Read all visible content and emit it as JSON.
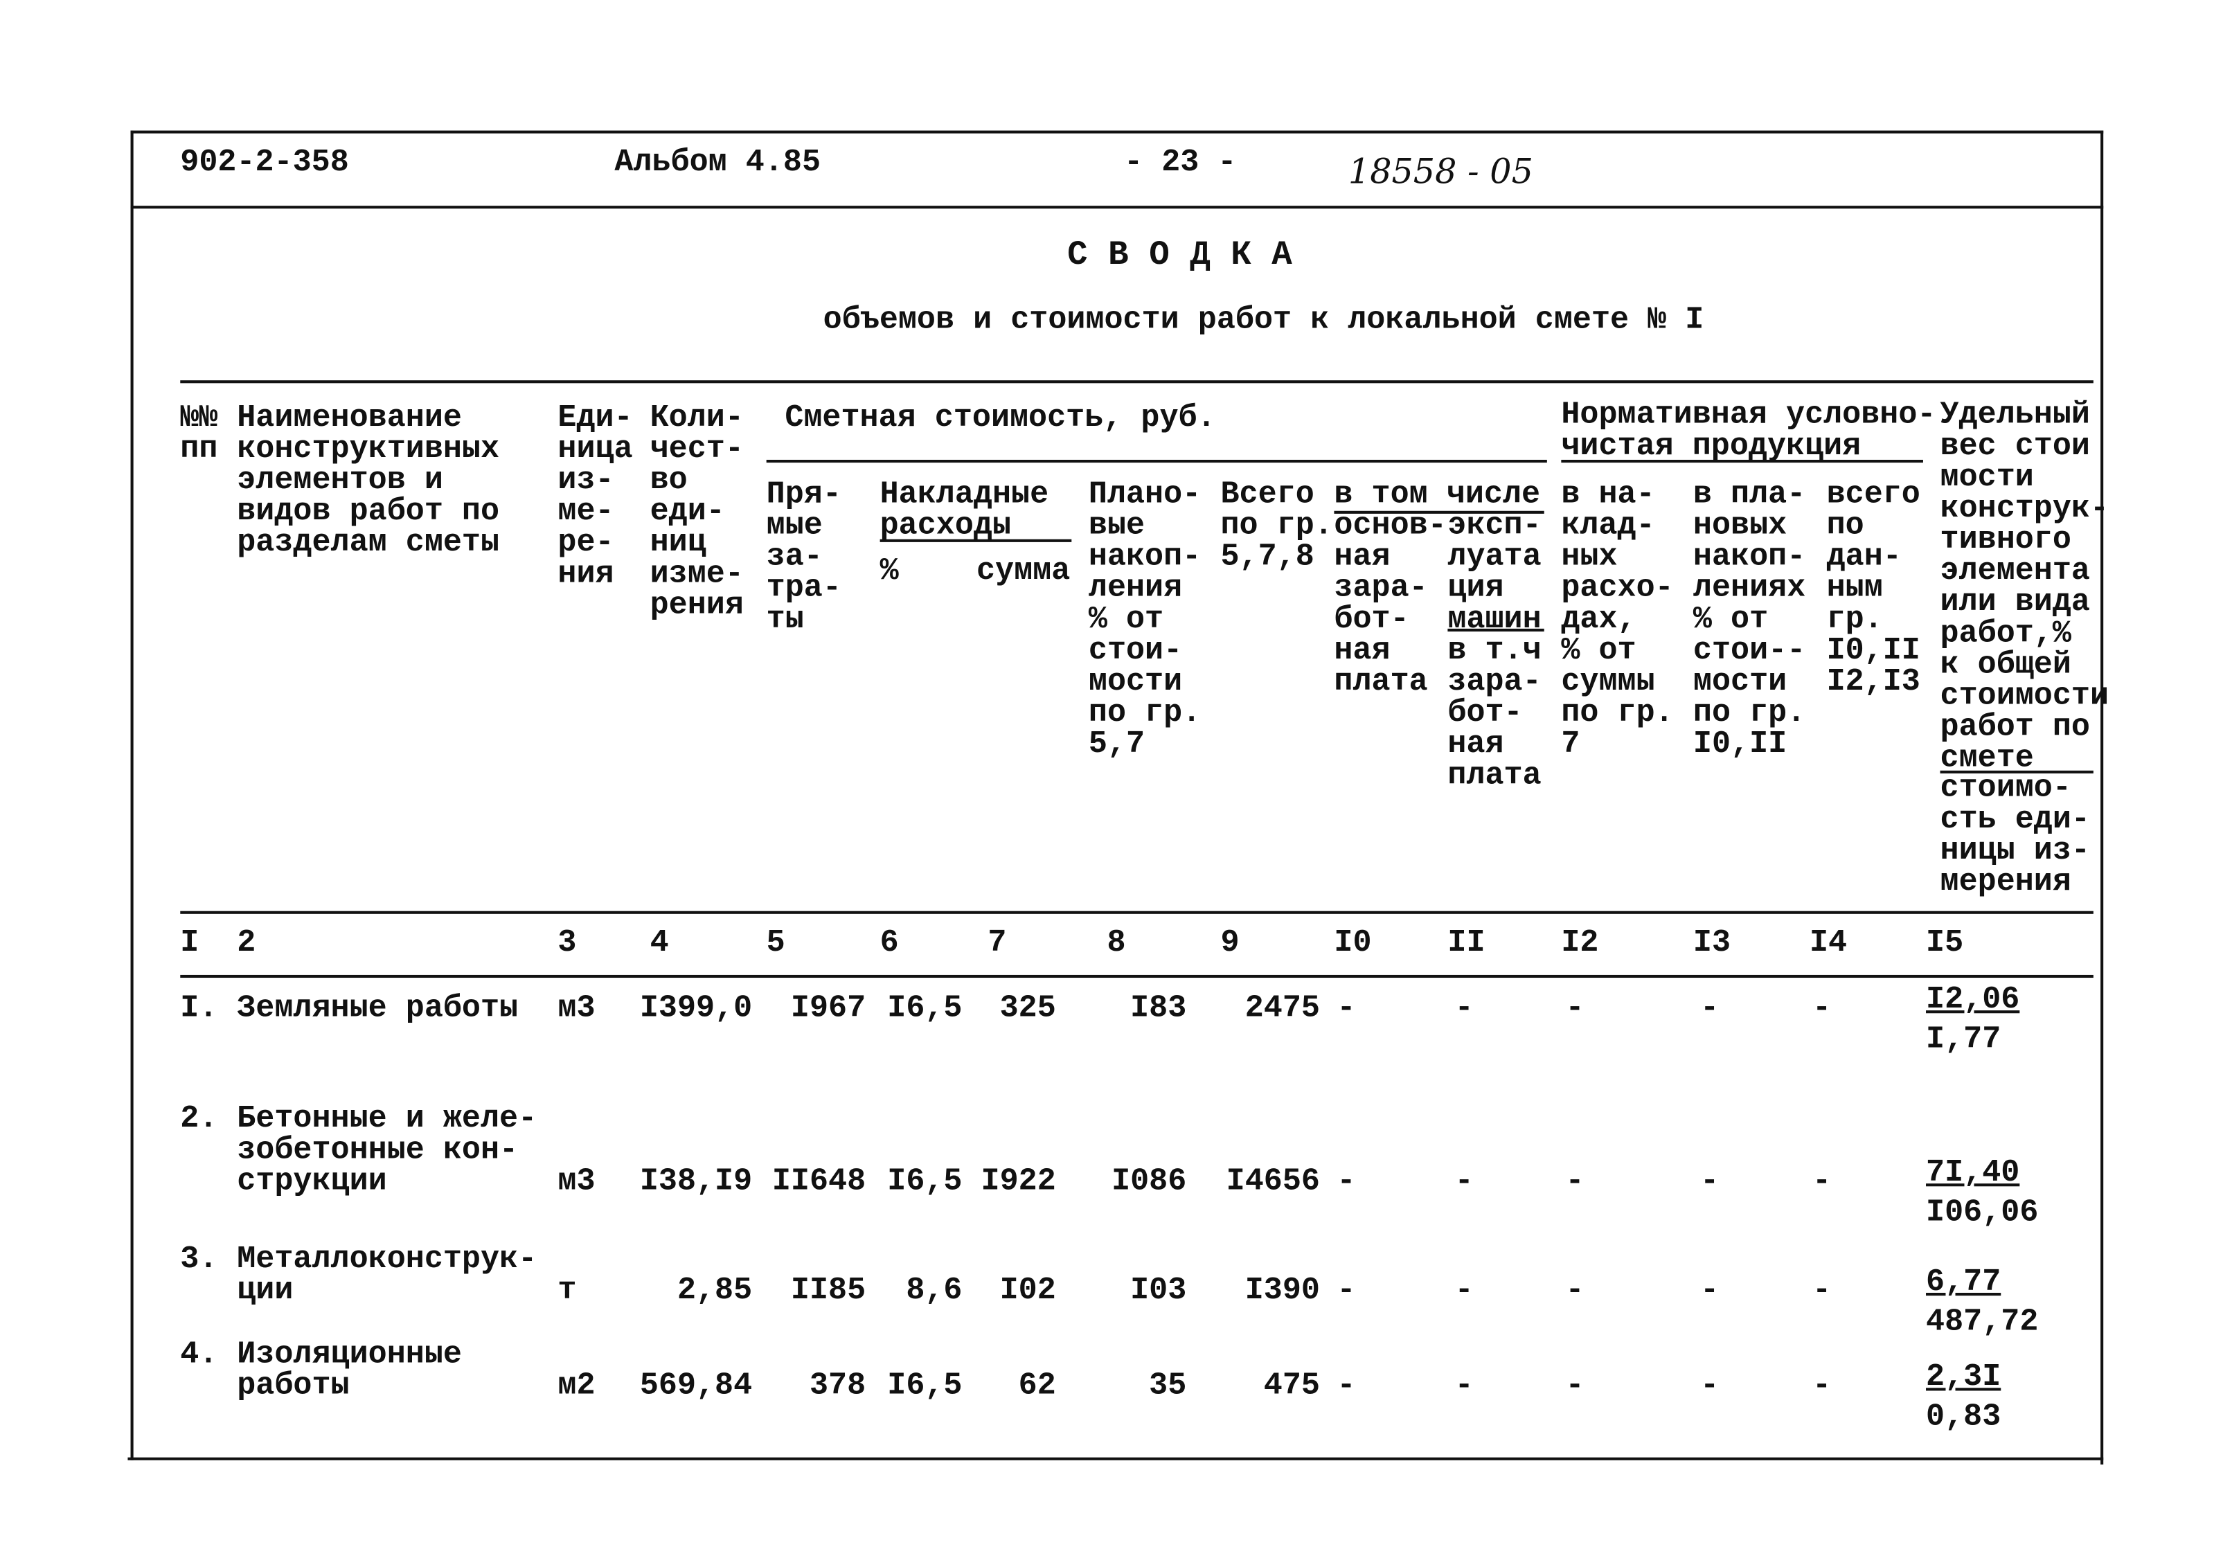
{
  "header": {
    "code": "902-2-358",
    "album": "Альбом 4.85",
    "page": "- 23 -",
    "handwritten_number": "18558 - 05"
  },
  "title": "С В О Д К А",
  "subtitle": "объемов и стоимости работ к локальной смете № I",
  "columns": {
    "c1": "№№\nпп",
    "c2": "Наименование\nконструктивных\nэлементов и\nвидов работ по\nразделам сметы",
    "c3": "Еди-\nница\nиз-\nме-\nре-\nния",
    "c4": "Коли-\nчест-\nво\nеди-\nниц\nизме-\nрения",
    "group_cost": "Сметная стоимость, руб.",
    "c5": "Пря-\nмые\nза-\nтра-\nты",
    "c6_7_group": "Накладные\nрасходы",
    "c6": "%",
    "c7": "сумма",
    "c8": "Плано-\nвые\nнакоп-\nления\n% от\nстои-\nмости\nпо гр.\n5,7",
    "c9": "Всего\nпо гр.\n5,7,8",
    "c10_11_group": "в том числе",
    "c10": "основ-\nная\nзара-\nбот-\nная\nплата",
    "c11_top": "эксп-\nлуата\nция\nмашин",
    "c11_bottom": "в т.ч\nзара-\nбот-\nная\nплата",
    "group_norm": "Нормативная условно-\nчистая продукция",
    "c12": "в на-\nклад-\nных\nрасхо-\nдах,\n% от\nсуммы\nпо гр.\n 7",
    "c13": "в пла-\nновых\nнакоп-\nлениях\n% от\nстои--\nмости\nпо гр.\nI0,II",
    "c14": "всего\nпо\nдан-\nным\nгр.\nI0,II\nI2,I3",
    "c15_top": "Удельный\nвес стои\nмости\nконструк-\nтивного\nэлемента\nили вида\nработ,%\nк общей\nстоимости\nработ по\nсмете",
    "c15_bottom": "стоимо-\nсть еди-\nницы из-\nмерения"
  },
  "column_numbers": [
    "I",
    "2",
    "3",
    "4",
    "5",
    "6",
    "7",
    "8",
    "9",
    "I0",
    "II",
    "I2",
    "I3",
    "I4",
    "I5"
  ],
  "rows": [
    {
      "no": "I.",
      "name": "Земляные работы",
      "unit": "м3",
      "qty": "I399,0",
      "direct": "I967",
      "oh_pct": "I6,5",
      "oh_sum": "325",
      "planned": "I83",
      "total": "2475",
      "c10": "-",
      "c11": "-",
      "c12": "-",
      "c13": "-",
      "c14": "-",
      "share": "I2,06",
      "unit_cost": "I,77"
    },
    {
      "no": "2.",
      "name": "Бетонные и желе-\nзобетонные кон-\nструкции",
      "unit": "м3",
      "qty": "I38,I9",
      "direct": "II648",
      "oh_pct": "I6,5",
      "oh_sum": "I922",
      "planned": "I086",
      "total": "I4656",
      "c10": "-",
      "c11": "-",
      "c12": "-",
      "c13": "-",
      "c14": "-",
      "share": "7I,40",
      "unit_cost": "I06,06"
    },
    {
      "no": "3.",
      "name": "Металлоконструк-\nции",
      "unit": "т",
      "qty": "2,85",
      "direct": "II85",
      "oh_pct": "8,6",
      "oh_sum": "I02",
      "planned": "I03",
      "total": "I390",
      "c10": "-",
      "c11": "-",
      "c12": "-",
      "c13": "-",
      "c14": "-",
      "share": "6,77",
      "unit_cost": "487,72"
    },
    {
      "no": "4.",
      "name": "Изоляционные\nработы",
      "unit": "м2",
      "qty": "569,84",
      "direct": "378",
      "oh_pct": "I6,5",
      "oh_sum": "62",
      "planned": "35",
      "total": "475",
      "c10": "-",
      "c11": "-",
      "c12": "-",
      "c13": "-",
      "c14": "-",
      "share": "2,3I",
      "unit_cost": "0,83"
    }
  ]
}
